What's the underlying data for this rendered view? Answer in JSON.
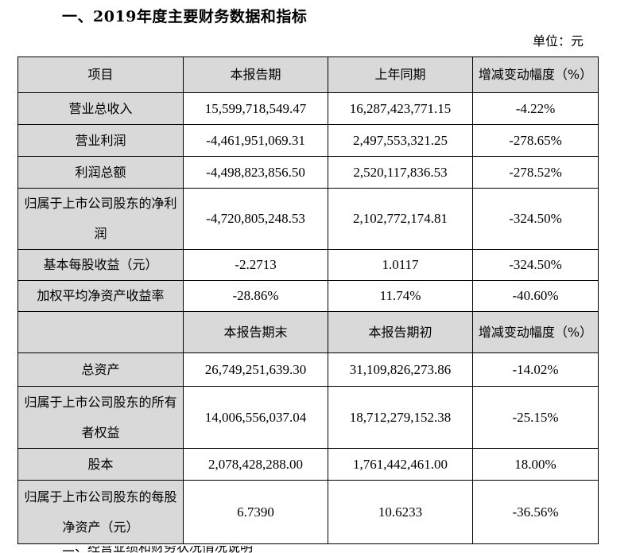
{
  "heading": "一、2019年度主要财务数据和指标",
  "unit": "单位：元",
  "header1": [
    "项目",
    "本报告期",
    "上年同期",
    "增减变动幅度（%）"
  ],
  "header2": [
    "",
    "本报告期末",
    "本报告期初",
    "增减变动幅度（%）"
  ],
  "rows1": [
    {
      "label": "营业总收入",
      "current": "15,599,718,549.47",
      "prior": "16,287,423,771.15",
      "change": "-4.22%"
    },
    {
      "label": "营业利润",
      "current": "-4,461,951,069.31",
      "prior": "2,497,553,321.25",
      "change": "-278.65%"
    },
    {
      "label": "利润总额",
      "current": "-4,498,823,856.50",
      "prior": "2,520,117,836.53",
      "change": "-278.52%"
    },
    {
      "label": "归属于上市公司股东的净利润",
      "current": "-4,720,805,248.53",
      "prior": "2,102,772,174.81",
      "change": "-324.50%"
    },
    {
      "label": "基本每股收益（元）",
      "current": "-2.2713",
      "prior": "1.0117",
      "change": "-324.50%"
    },
    {
      "label": "加权平均净资产收益率",
      "current": "-28.86%",
      "prior": "11.74%",
      "change": "-40.60%"
    }
  ],
  "rows2": [
    {
      "label": "总资产",
      "current": "26,749,251,639.30",
      "prior": "31,109,826,273.86",
      "change": "-14.02%"
    },
    {
      "label": "归属于上市公司股东的所有者权益",
      "current": "14,006,556,037.04",
      "prior": "18,712,279,152.38",
      "change": "-25.15%"
    },
    {
      "label": "股本",
      "current": "2,078,428,288.00",
      "prior": "1,761,442,461.00",
      "change": "18.00%"
    },
    {
      "label": "归属于上市公司股东的每股净资产（元）",
      "current": "6.7390",
      "prior": "10.6233",
      "change": "-36.56%"
    }
  ],
  "footer_fragment": "二、经营业绩和财务状况情况说明"
}
